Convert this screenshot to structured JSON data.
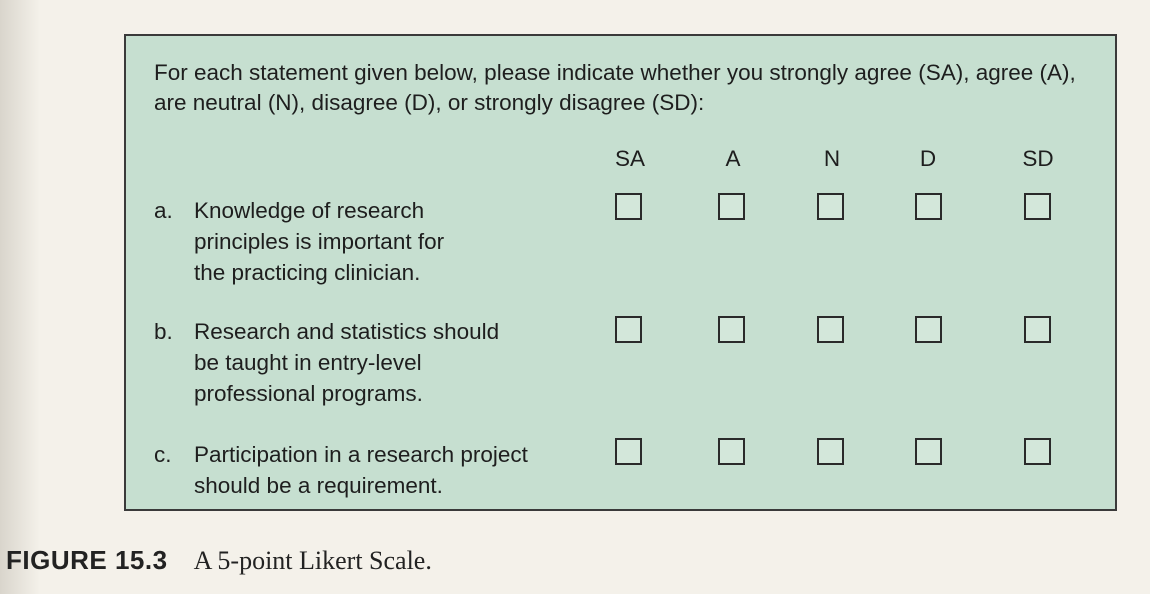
{
  "instructions": "For each statement given below, please indicate whether you strongly agree (SA), agree (A), are neutral (N), disagree (D), or strongly disagree (SD):",
  "scale": {
    "columns": [
      "SA",
      "A",
      "N",
      "D",
      "SD"
    ]
  },
  "statements": [
    {
      "letter": "a.",
      "text": "Knowledge of research principles is important for the practicing clinician."
    },
    {
      "letter": "b.",
      "text": "Research and statistics should be taught in entry-level professional programs."
    },
    {
      "letter": "c.",
      "text": "Participation in a research project should be a requirement."
    }
  ],
  "caption": {
    "label": "FIGURE 15.3",
    "text": "A 5-point Likert Scale."
  },
  "colors": {
    "panel_background": "#c6dfd0",
    "panel_border": "#3a3a3a",
    "page_background": "#f4f1ea"
  },
  "icons": {
    "checkbox": "empty-square-checkbox"
  }
}
